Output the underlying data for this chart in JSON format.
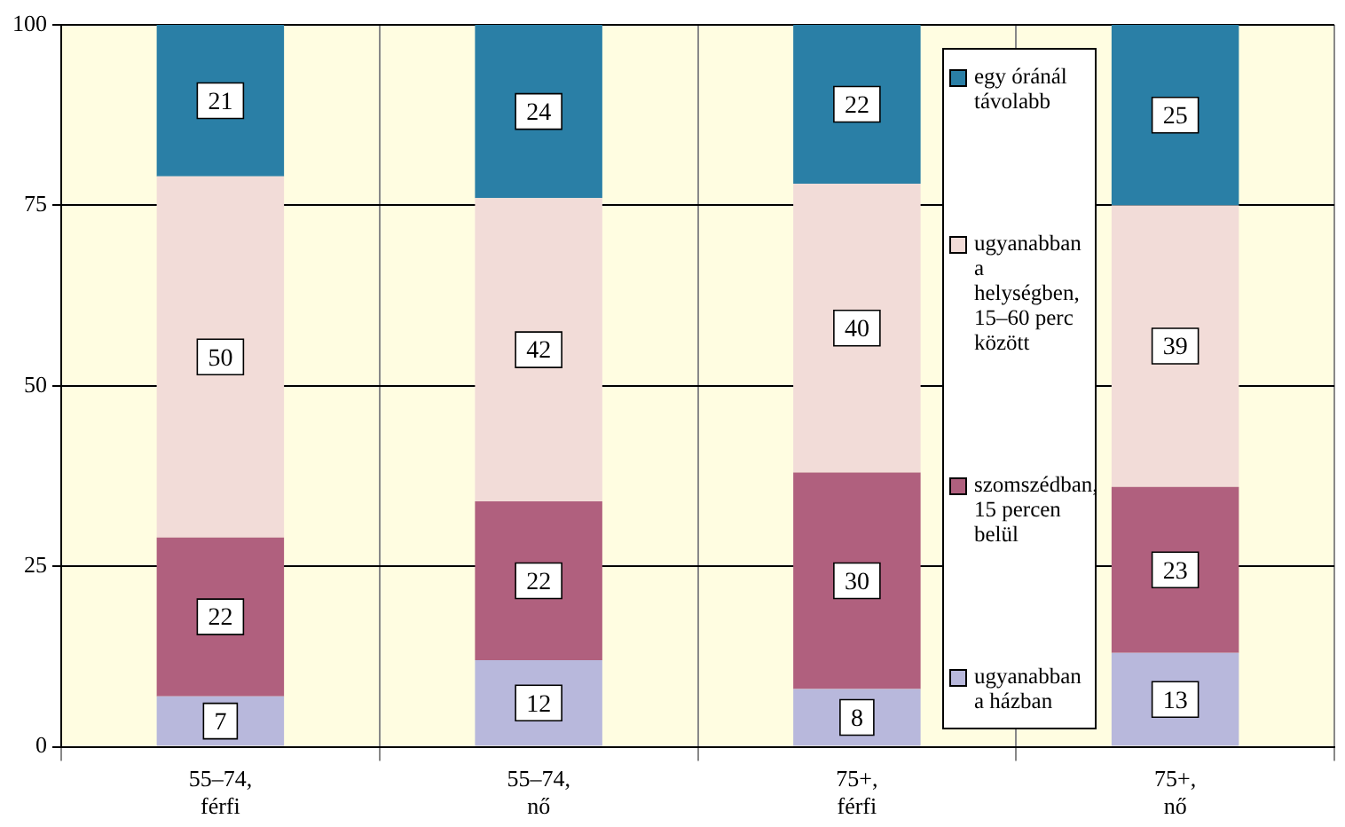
{
  "chart_data": {
    "type": "bar",
    "stacked": true,
    "categories": [
      "55–74,\nférfi",
      "55–74,\nnő",
      "75+,\nférfi",
      "75+,\nnő"
    ],
    "series": [
      {
        "name": "ugyanabban a házban",
        "color": "#b8b8dc",
        "values": [
          7,
          12,
          8,
          13
        ]
      },
      {
        "name": "szomszédban, 15 percen belül",
        "color": "#b0607e",
        "values": [
          22,
          22,
          30,
          23
        ]
      },
      {
        "name": "ugyanabban a helységben, 15–60 perc között",
        "color": "#f2dcd8",
        "values": [
          50,
          42,
          40,
          39
        ]
      },
      {
        "name": "egy óránál távolabb",
        "color": "#2a7fa6",
        "values": [
          21,
          24,
          22,
          25
        ]
      }
    ],
    "ylim": [
      0,
      100
    ],
    "yticks": [
      0,
      25,
      50,
      75,
      100
    ],
    "grid": true,
    "legend": "right",
    "data_labels": true
  }
}
